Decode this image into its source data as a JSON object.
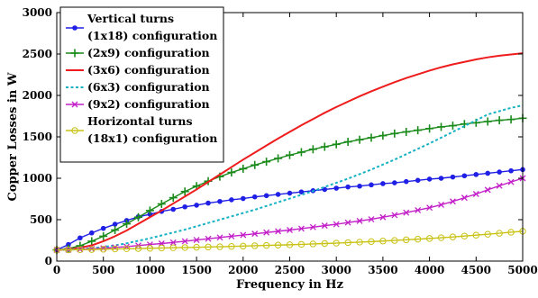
{
  "chart_data": {
    "type": "line",
    "xlabel": "Frequency in Hz",
    "ylabel": "Copper Losses in W",
    "xlim": [
      0,
      5000
    ],
    "ylim": [
      0,
      3000
    ],
    "xticks": [
      0,
      500,
      1000,
      1500,
      2000,
      2500,
      3000,
      3500,
      4000,
      4500,
      5000
    ],
    "yticks": [
      0,
      500,
      1000,
      1500,
      2000,
      2500,
      3000
    ],
    "grid": false,
    "legend_position": "top-left",
    "x": [
      0,
      125,
      250,
      375,
      500,
      625,
      750,
      875,
      1000,
      1125,
      1250,
      1375,
      1500,
      1625,
      1750,
      1875,
      2000,
      2125,
      2250,
      2375,
      2500,
      2625,
      2750,
      2875,
      3000,
      3125,
      3250,
      3375,
      3500,
      3625,
      3750,
      3875,
      4000,
      4125,
      4250,
      4375,
      4500,
      4625,
      4750,
      4875,
      5000
    ],
    "series": [
      {
        "legend_lines": [
          "Vertical turns",
          "(1x18) configuration"
        ],
        "color": "#1f1fe6",
        "line_style": "solid",
        "marker": "dot",
        "values": [
          135,
          200,
          280,
          340,
          395,
          445,
          490,
          535,
          565,
          600,
          625,
          655,
          675,
          700,
          720,
          740,
          755,
          775,
          790,
          805,
          820,
          835,
          850,
          865,
          880,
          895,
          905,
          920,
          935,
          945,
          960,
          975,
          990,
          1000,
          1015,
          1030,
          1045,
          1060,
          1075,
          1090,
          1105
        ]
      },
      {
        "legend_lines": [
          "(2x9) configuration"
        ],
        "color": "#1a8a1a",
        "line_style": "solid",
        "marker": "plus",
        "values": [
          135,
          150,
          185,
          240,
          300,
          375,
          450,
          530,
          610,
          690,
          765,
          840,
          905,
          965,
          1020,
          1070,
          1115,
          1160,
          1200,
          1240,
          1280,
          1315,
          1350,
          1380,
          1410,
          1440,
          1465,
          1490,
          1515,
          1540,
          1560,
          1580,
          1600,
          1620,
          1635,
          1655,
          1670,
          1685,
          1700,
          1710,
          1725
        ]
      },
      {
        "legend_lines": [
          "(3x6) configuration"
        ],
        "color": "#ee1c1c",
        "line_style": "solid",
        "marker": "none",
        "values": [
          135,
          140,
          160,
          190,
          240,
          300,
          370,
          450,
          530,
          610,
          695,
          780,
          865,
          955,
          1045,
          1135,
          1225,
          1310,
          1395,
          1480,
          1560,
          1640,
          1715,
          1790,
          1860,
          1925,
          1990,
          2050,
          2105,
          2160,
          2210,
          2255,
          2300,
          2340,
          2375,
          2405,
          2435,
          2460,
          2480,
          2495,
          2510
        ]
      },
      {
        "legend_lines": [
          "(6x3) configuration"
        ],
        "color": "#15b2c4",
        "line_style": "dashed",
        "marker": "none",
        "values": [
          135,
          137,
          145,
          155,
          170,
          190,
          215,
          245,
          275,
          310,
          345,
          380,
          420,
          460,
          500,
          540,
          580,
          620,
          665,
          710,
          755,
          800,
          845,
          895,
          945,
          995,
          1050,
          1105,
          1165,
          1225,
          1290,
          1355,
          1420,
          1490,
          1560,
          1630,
          1700,
          1770,
          1810,
          1850,
          1880
        ]
      },
      {
        "legend_lines": [
          "(9x2) configuration"
        ],
        "color": "#c21fc8",
        "line_style": "solid",
        "marker": "cross",
        "values": [
          135,
          137,
          142,
          148,
          155,
          165,
          175,
          188,
          200,
          212,
          225,
          240,
          255,
          270,
          285,
          300,
          315,
          330,
          345,
          360,
          375,
          392,
          410,
          428,
          445,
          465,
          485,
          505,
          530,
          555,
          585,
          615,
          645,
          680,
          720,
          765,
          810,
          860,
          910,
          955,
          1000
        ]
      },
      {
        "legend_lines": [
          "Horizontal turns",
          "(18x1) configuration"
        ],
        "color": "#c8c214",
        "line_style": "solid",
        "marker": "circle",
        "values": [
          135,
          136,
          138,
          140,
          143,
          146,
          149,
          152,
          155,
          158,
          161,
          164,
          167,
          170,
          173,
          177,
          181,
          185,
          189,
          193,
          197,
          202,
          207,
          212,
          217,
          223,
          229,
          235,
          242,
          249,
          257,
          265,
          273,
          282,
          292,
          302,
          313,
          324,
          336,
          348,
          360
        ]
      }
    ]
  }
}
